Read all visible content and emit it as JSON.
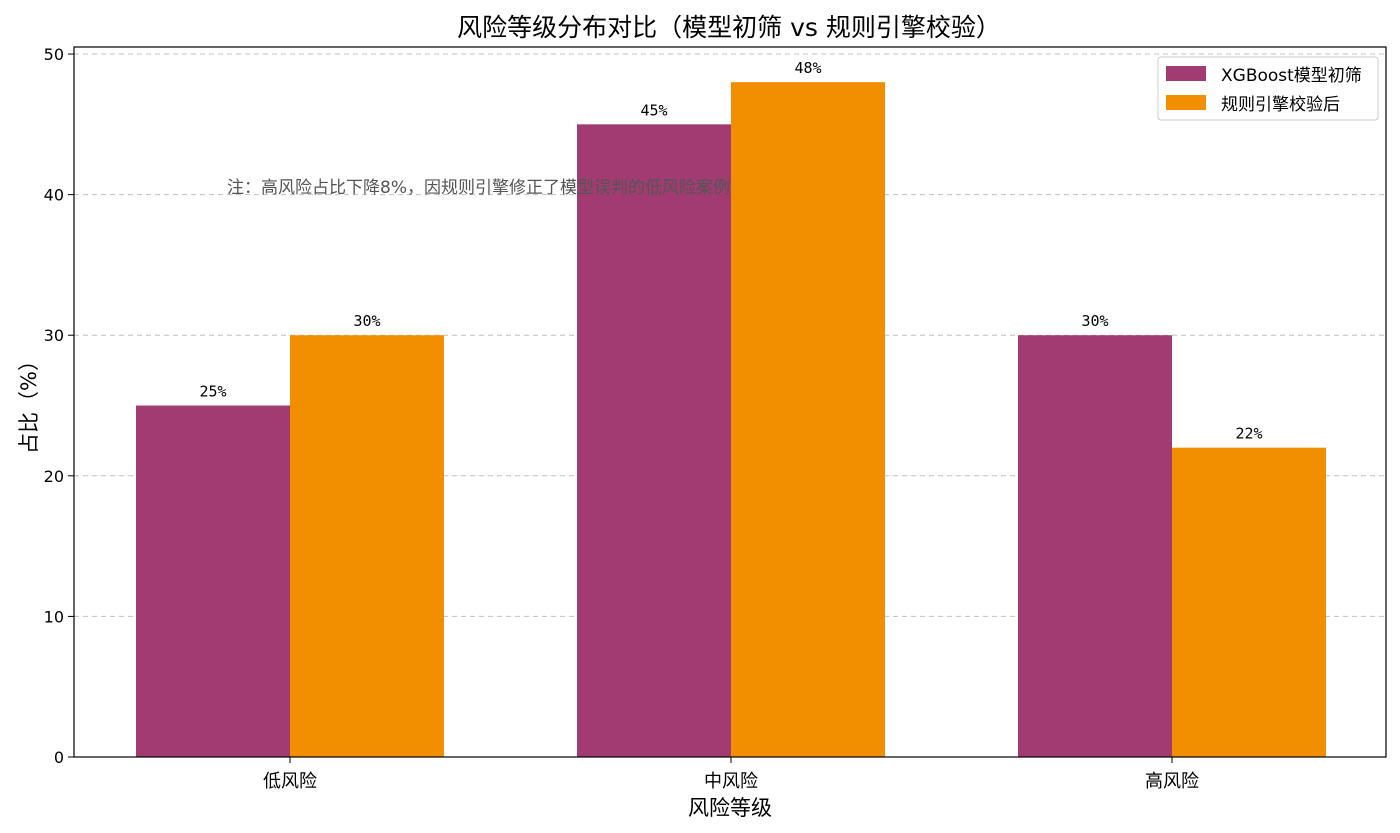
{
  "chart_data": {
    "type": "bar",
    "title": "风险等级分布对比（模型初筛 vs 规则引擎校验）",
    "xlabel": "风险等级",
    "ylabel": "占比（%）",
    "categories": [
      "低风险",
      "中风险",
      "高风险"
    ],
    "series": [
      {
        "name": "XGBoost模型初筛",
        "values": [
          25,
          45,
          30
        ],
        "labels": [
          "25%",
          "45%",
          "30%"
        ],
        "color": "#a23b72"
      },
      {
        "name": "规则引擎校验后",
        "values": [
          30,
          48,
          22
        ],
        "labels": [
          "30%",
          "48%",
          "22%"
        ],
        "color": "#f18f01"
      }
    ],
    "ylim": [
      0,
      50.5
    ],
    "yticks": [
      0,
      10,
      20,
      30,
      40,
      50
    ],
    "grid": true,
    "legend_position": "top-right",
    "annotation": "注：高风险占比下降8%，因规则引擎修正了模型误判的低风险案例",
    "annotation_color": "#555555"
  }
}
